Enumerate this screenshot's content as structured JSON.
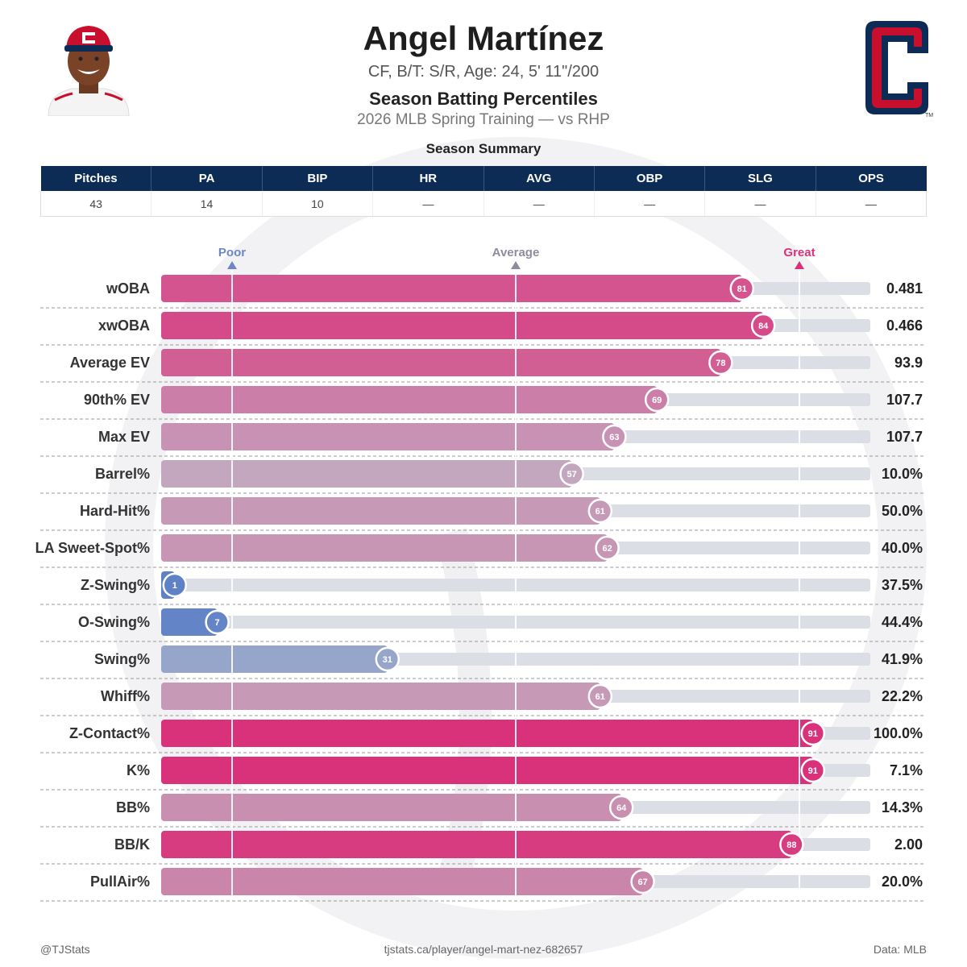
{
  "header": {
    "name": "Angel Martínez",
    "bio": "CF, B/T: S/R, Age: 24, 5' 11\"/200",
    "report_title": "Season Batting Percentiles",
    "context": "2026 MLB Spring Training — vs RHP"
  },
  "summary": {
    "title": "Season Summary",
    "columns": [
      "Pitches",
      "PA",
      "BIP",
      "HR",
      "AVG",
      "OBP",
      "SLG",
      "OPS"
    ],
    "values": [
      "43",
      "14",
      "10",
      "—",
      "—",
      "—",
      "—",
      "—"
    ]
  },
  "chart_data": {
    "type": "bar",
    "orientation": "horizontal",
    "x_range": [
      0,
      100
    ],
    "reference_lines": [
      {
        "label": "Poor",
        "value": 10,
        "color": "#6d87c4"
      },
      {
        "label": "Average",
        "value": 50,
        "color": "#8c8c9e"
      },
      {
        "label": "Great",
        "value": 90,
        "color": "#d9327a"
      }
    ],
    "categories": [
      "wOBA",
      "xwOBA",
      "Average EV",
      "90th% EV",
      "Max EV",
      "Barrel%",
      "Hard-Hit%",
      "LA Sweet-Spot%",
      "Z-Swing%",
      "O-Swing%",
      "Swing%",
      "Whiff%",
      "Z-Contact%",
      "K%",
      "BB%",
      "BB/K",
      "PullAir%"
    ],
    "percentiles": [
      81,
      84,
      78,
      69,
      63,
      57,
      61,
      62,
      1,
      7,
      31,
      61,
      91,
      91,
      64,
      88,
      67
    ],
    "values": [
      "0.481",
      "0.466",
      "93.9",
      "107.7",
      "107.7",
      "10.0%",
      "50.0%",
      "40.0%",
      "37.5%",
      "44.4%",
      "41.9%",
      "22.2%",
      "100.0%",
      "7.1%",
      "14.3%",
      "2.00",
      "20.0%"
    ],
    "colors": {
      "great": "#d9327a",
      "average": "#bfbfcd",
      "poor": "#5f82c7",
      "track": "#dcdee6"
    }
  },
  "footer": {
    "left": "@TJStats",
    "center": "tjstats.ca/player/angel-mart-nez-682657",
    "right": "Data: MLB"
  },
  "icons": [
    "player-headshot",
    "team-logo-c",
    "watermark-baseball"
  ]
}
